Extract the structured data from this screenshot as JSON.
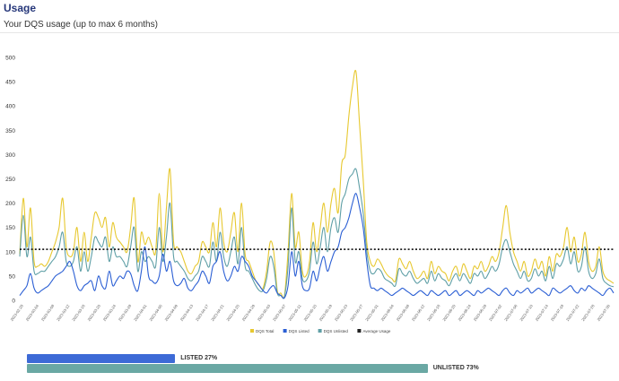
{
  "header": {
    "title": "Usage",
    "subtitle": "Your DQS usage (up to max 6 months)"
  },
  "colors": {
    "total": "#e7c82f",
    "listed": "#2b5fd4",
    "unlisted": "#5f9fa6",
    "average": "#222222",
    "listed_bar": "#3d6ad6",
    "unlisted_bar": "#6aa8a4"
  },
  "chart_data": {
    "type": "line",
    "title": "",
    "xlabel": "",
    "ylabel": "",
    "ylim": [
      0,
      500
    ],
    "yticks": [
      0,
      50,
      100,
      150,
      200,
      250,
      300,
      350,
      400,
      450,
      500
    ],
    "grid": false,
    "legend_position": "bottom",
    "x_tick_labels": [
      "2023-02-28",
      "2023-03-04",
      "2023-03-08",
      "2023-03-12",
      "2023-03-16",
      "2023-03-20",
      "2023-03-24",
      "2023-03-28",
      "2023-04-01",
      "2023-04-05",
      "2023-04-09",
      "2023-04-13",
      "2023-04-17",
      "2023-04-21",
      "2023-04-25",
      "2023-04-29",
      "2023-05-03",
      "2023-05-07",
      "2023-05-11",
      "2023-05-15",
      "2023-05-19",
      "2023-05-23",
      "2023-05-27",
      "2023-05-31",
      "2023-06-04",
      "2023-06-08",
      "2023-06-12",
      "2023-06-16",
      "2023-06-20",
      "2023-06-24",
      "2023-06-28",
      "2023-07-02",
      "2023-07-06",
      "2023-07-10",
      "2023-07-14",
      "2023-07-18",
      "2023-07-22",
      "2023-07-26",
      "2023-07-30"
    ],
    "series": [
      {
        "name": "DQS Total",
        "color": "#e7c82f",
        "values": [
          95,
          210,
          110,
          190,
          80,
          70,
          75,
          70,
          80,
          100,
          120,
          150,
          210,
          110,
          90,
          100,
          150,
          80,
          140,
          80,
          130,
          180,
          170,
          150,
          170,
          110,
          160,
          130,
          120,
          110,
          100,
          150,
          210,
          80,
          140,
          115,
          130,
          110,
          100,
          220,
          100,
          190,
          270,
          120,
          110,
          100,
          80,
          60,
          55,
          70,
          80,
          120,
          110,
          100,
          160,
          110,
          190,
          120,
          100,
          140,
          180,
          100,
          200,
          95,
          80,
          60,
          40,
          30,
          25,
          60,
          120,
          100,
          20,
          15,
          10,
          100,
          220,
          110,
          140,
          60,
          50,
          80,
          160,
          100,
          150,
          200,
          140,
          200,
          230,
          180,
          280,
          300,
          380,
          440,
          470,
          360,
          250,
          120,
          80,
          70,
          85,
          75,
          60,
          50,
          45,
          40,
          85,
          75,
          65,
          80,
          60,
          45,
          50,
          60,
          45,
          80,
          55,
          70,
          60,
          55,
          40,
          60,
          70,
          50,
          75,
          60,
          45,
          70,
          65,
          80,
          60,
          70,
          90,
          80,
          100,
          150,
          195,
          140,
          100,
          80,
          60,
          80,
          50,
          60,
          85,
          65,
          80,
          50,
          90,
          60,
          95,
          90,
          110,
          150,
          100,
          130,
          80,
          95,
          140,
          80,
          60,
          70,
          110,
          60,
          45,
          40,
          35
        ]
      },
      {
        "name": "DQS Listed",
        "color": "#2b5fd4",
        "values": [
          10,
          20,
          30,
          55,
          25,
          15,
          20,
          25,
          30,
          40,
          50,
          55,
          60,
          70,
          80,
          60,
          30,
          20,
          30,
          35,
          40,
          20,
          50,
          30,
          25,
          60,
          30,
          40,
          50,
          45,
          60,
          55,
          30,
          20,
          60,
          110,
          50,
          40,
          35,
          50,
          95,
          60,
          80,
          40,
          30,
          35,
          45,
          25,
          20,
          30,
          40,
          60,
          50,
          35,
          70,
          80,
          100,
          60,
          40,
          50,
          70,
          60,
          90,
          80,
          70,
          50,
          40,
          30,
          20,
          15,
          25,
          30,
          15,
          10,
          5,
          30,
          100,
          50,
          80,
          30,
          20,
          25,
          60,
          40,
          70,
          90,
          60,
          80,
          100,
          110,
          140,
          150,
          170,
          200,
          220,
          190,
          150,
          80,
          30,
          25,
          20,
          25,
          20,
          15,
          10,
          15,
          20,
          25,
          20,
          15,
          10,
          15,
          20,
          15,
          10,
          20,
          15,
          10,
          15,
          20,
          10,
          15,
          20,
          10,
          15,
          20,
          15,
          10,
          20,
          15,
          20,
          25,
          20,
          15,
          10,
          20,
          25,
          15,
          10,
          20,
          15,
          20,
          25,
          15,
          20,
          25,
          20,
          15,
          10,
          25,
          20,
          15,
          20,
          25,
          30,
          20,
          15,
          25,
          20,
          30,
          25,
          20,
          15,
          10,
          20,
          25,
          15
        ]
      },
      {
        "name": "DQS Unlisted",
        "color": "#5f9fa6",
        "values": [
          90,
          175,
          90,
          130,
          60,
          55,
          60,
          60,
          70,
          80,
          90,
          110,
          140,
          80,
          70,
          80,
          110,
          60,
          100,
          60,
          90,
          130,
          120,
          110,
          130,
          80,
          110,
          90,
          90,
          80,
          70,
          110,
          150,
          60,
          100,
          80,
          90,
          80,
          70,
          150,
          80,
          130,
          200,
          90,
          80,
          70,
          60,
          45,
          40,
          50,
          60,
          90,
          80,
          70,
          120,
          80,
          140,
          90,
          70,
          100,
          130,
          75,
          150,
          70,
          60,
          45,
          30,
          20,
          20,
          45,
          90,
          70,
          15,
          10,
          8,
          70,
          190,
          80,
          100,
          45,
          40,
          60,
          120,
          75,
          110,
          150,
          100,
          150,
          170,
          140,
          200,
          220,
          250,
          260,
          270,
          230,
          180,
          100,
          60,
          55,
          65,
          60,
          45,
          40,
          35,
          30,
          65,
          55,
          50,
          60,
          45,
          35,
          40,
          45,
          35,
          60,
          40,
          55,
          45,
          40,
          30,
          45,
          55,
          40,
          55,
          45,
          35,
          55,
          50,
          60,
          45,
          55,
          70,
          60,
          75,
          110,
          125,
          100,
          75,
          60,
          45,
          60,
          40,
          45,
          65,
          50,
          60,
          40,
          70,
          45,
          75,
          70,
          85,
          110,
          75,
          100,
          60,
          70,
          110,
          60,
          45,
          55,
          85,
          45,
          35,
          30,
          28
        ]
      }
    ],
    "average": {
      "name": "Average Usage",
      "value": 105
    }
  },
  "summary": {
    "listed_label": "LISTED 27%",
    "listed_pct": 27,
    "unlisted_label": "UNLISTED 73%",
    "unlisted_pct": 73
  }
}
